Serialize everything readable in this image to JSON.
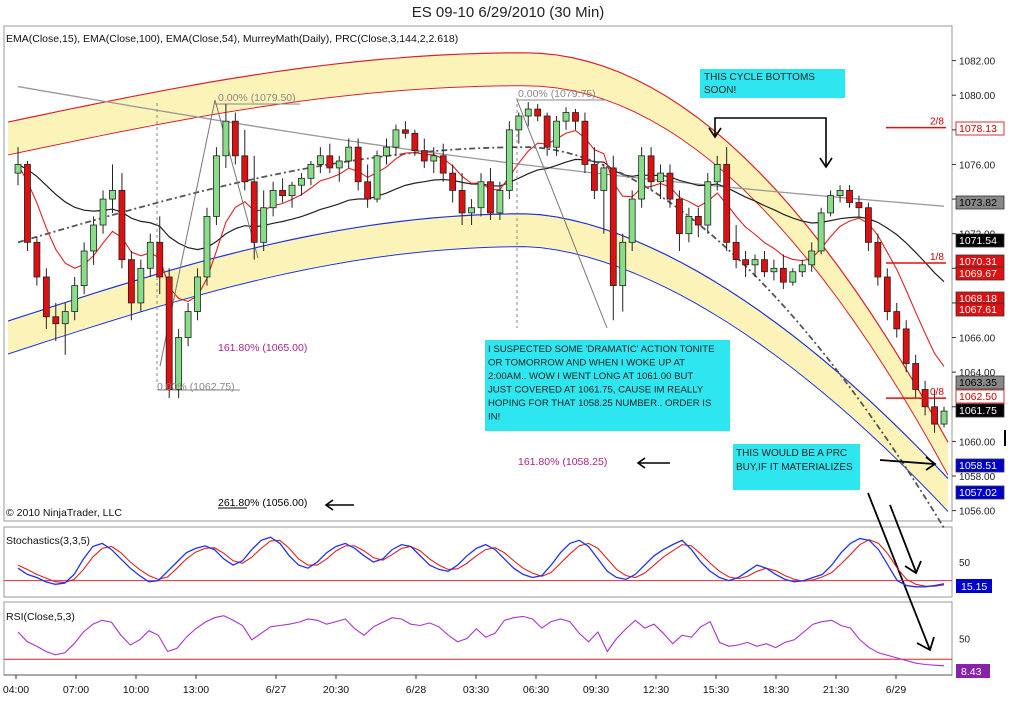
{
  "window_title": "ES 09-10  6/29/2010 (30 Min)",
  "chart_data": {
    "type": "candlestick",
    "title": "ES 09-10  6/29/2010 (30 Min)",
    "indicators_label": "EMA(Close,15), EMA(Close,100), EMA(Close,54), MurreyMath(Daily), PRC(Close,3,144,2,2.618)",
    "copyright": "© 2010 NinjaTrader, LLC",
    "x_ticks": [
      "04:00",
      "07:00",
      "10:00",
      "13:00",
      "6/27",
      "20:30",
      "6/28",
      "03:30",
      "06:30",
      "09:30",
      "12:30",
      "15:30",
      "18:30",
      "21:30",
      "6/29"
    ],
    "price_ticks": [
      "1082.00",
      "1080.00",
      "1078.00",
      "1076.00",
      "1074.00",
      "1072.00",
      "1070.00",
      "1068.00",
      "1066.00",
      "1064.00",
      "1062.00",
      "1060.00",
      "1058.00",
      "1056.00"
    ],
    "ylim": [
      1055.4,
      1084.0
    ],
    "candles": [
      [
        1075.5,
        1077.0,
        1074.8,
        1076.0
      ],
      [
        1076.0,
        1076.2,
        1071.0,
        1071.5
      ],
      [
        1071.5,
        1071.8,
        1069.0,
        1069.5
      ],
      [
        1069.5,
        1070.0,
        1066.5,
        1067.2
      ],
      [
        1067.2,
        1068.0,
        1065.8,
        1066.8
      ],
      [
        1066.8,
        1068.0,
        1065.0,
        1067.5
      ],
      [
        1067.5,
        1069.5,
        1067.0,
        1069.0
      ],
      [
        1069.0,
        1071.5,
        1068.5,
        1071.0
      ],
      [
        1071.0,
        1073.0,
        1070.2,
        1072.5
      ],
      [
        1072.5,
        1074.5,
        1072.0,
        1074.0
      ],
      [
        1074.0,
        1076.0,
        1073.2,
        1074.5
      ],
      [
        1074.5,
        1075.5,
        1070.0,
        1070.5
      ],
      [
        1070.5,
        1071.0,
        1067.0,
        1068.0
      ],
      [
        1068.0,
        1070.5,
        1067.5,
        1070.0
      ],
      [
        1070.0,
        1072.0,
        1069.5,
        1071.5
      ],
      [
        1071.5,
        1073.0,
        1068.5,
        1069.5
      ],
      [
        1069.5,
        1070.0,
        1062.5,
        1063.0
      ],
      [
        1063.0,
        1066.5,
        1062.5,
        1066.0
      ],
      [
        1066.0,
        1068.0,
        1065.5,
        1067.5
      ],
      [
        1067.5,
        1070.0,
        1067.0,
        1069.5
      ],
      [
        1069.5,
        1073.5,
        1069.0,
        1073.0
      ],
      [
        1073.0,
        1077.0,
        1072.5,
        1076.5
      ],
      [
        1076.5,
        1079.5,
        1075.8,
        1078.5
      ],
      [
        1078.5,
        1079.0,
        1076.0,
        1076.5
      ],
      [
        1076.5,
        1078.0,
        1074.5,
        1075.0
      ],
      [
        1075.0,
        1076.5,
        1070.5,
        1071.5
      ],
      [
        1071.5,
        1074.5,
        1071.0,
        1073.5
      ],
      [
        1073.5,
        1075.0,
        1073.0,
        1074.5
      ],
      [
        1074.5,
        1075.2,
        1073.8,
        1074.2
      ],
      [
        1074.2,
        1075.0,
        1073.5,
        1074.8
      ],
      [
        1074.8,
        1075.5,
        1074.2,
        1075.2
      ],
      [
        1075.2,
        1076.2,
        1074.8,
        1076.0
      ],
      [
        1076.0,
        1077.0,
        1075.5,
        1076.5
      ],
      [
        1076.5,
        1077.2,
        1075.5,
        1075.8
      ],
      [
        1075.8,
        1076.5,
        1075.0,
        1076.2
      ],
      [
        1076.2,
        1077.5,
        1075.8,
        1077.0
      ],
      [
        1077.0,
        1077.5,
        1074.5,
        1075.0
      ],
      [
        1075.0,
        1076.0,
        1073.5,
        1074.0
      ],
      [
        1074.0,
        1076.8,
        1073.8,
        1076.5
      ],
      [
        1076.5,
        1077.5,
        1076.0,
        1077.0
      ],
      [
        1077.0,
        1078.3,
        1076.5,
        1078.0
      ],
      [
        1078.0,
        1078.5,
        1077.5,
        1077.8
      ],
      [
        1077.8,
        1078.0,
        1076.5,
        1076.8
      ],
      [
        1076.8,
        1077.5,
        1075.8,
        1076.2
      ],
      [
        1076.2,
        1077.0,
        1075.5,
        1076.5
      ],
      [
        1076.5,
        1077.2,
        1075.0,
        1075.5
      ],
      [
        1075.5,
        1076.0,
        1073.8,
        1074.5
      ],
      [
        1074.5,
        1075.5,
        1072.5,
        1073.2
      ],
      [
        1073.2,
        1074.0,
        1072.5,
        1073.5
      ],
      [
        1073.5,
        1075.5,
        1073.0,
        1075.0
      ],
      [
        1075.0,
        1075.8,
        1072.8,
        1073.2
      ],
      [
        1073.2,
        1075.0,
        1072.8,
        1074.5
      ],
      [
        1074.5,
        1078.5,
        1074.0,
        1078.0
      ],
      [
        1078.0,
        1079.0,
        1077.2,
        1078.8
      ],
      [
        1078.8,
        1079.6,
        1078.2,
        1079.2
      ],
      [
        1079.2,
        1079.5,
        1078.5,
        1078.8
      ],
      [
        1078.8,
        1079.0,
        1076.5,
        1077.0
      ],
      [
        1077.0,
        1078.8,
        1076.5,
        1078.5
      ],
      [
        1078.5,
        1079.3,
        1078.0,
        1079.0
      ],
      [
        1079.0,
        1079.2,
        1078.0,
        1078.5
      ],
      [
        1078.5,
        1079.0,
        1075.5,
        1076.0
      ],
      [
        1076.0,
        1077.0,
        1074.0,
        1074.5
      ],
      [
        1074.5,
        1076.0,
        1072.0,
        1075.8
      ],
      [
        1075.8,
        1076.5,
        1067.0,
        1069.0
      ],
      [
        1069.0,
        1072.0,
        1067.5,
        1071.5
      ],
      [
        1071.5,
        1074.5,
        1071.0,
        1074.0
      ],
      [
        1074.0,
        1077.0,
        1073.5,
        1076.5
      ],
      [
        1076.5,
        1077.0,
        1074.5,
        1075.0
      ],
      [
        1075.0,
        1076.0,
        1074.0,
        1075.5
      ],
      [
        1075.5,
        1076.0,
        1073.5,
        1074.0
      ],
      [
        1074.0,
        1074.5,
        1071.0,
        1072.0
      ],
      [
        1072.0,
        1073.5,
        1071.5,
        1073.0
      ],
      [
        1073.0,
        1073.5,
        1071.8,
        1072.5
      ],
      [
        1072.5,
        1075.5,
        1072.0,
        1075.0
      ],
      [
        1075.0,
        1076.5,
        1074.5,
        1076.0
      ],
      [
        1076.0,
        1077.0,
        1071.0,
        1071.5
      ],
      [
        1071.5,
        1072.5,
        1070.0,
        1070.5
      ],
      [
        1070.5,
        1071.0,
        1069.5,
        1070.2
      ],
      [
        1070.2,
        1070.8,
        1069.5,
        1070.5
      ],
      [
        1070.5,
        1071.0,
        1069.5,
        1069.8
      ],
      [
        1069.8,
        1070.5,
        1069.3,
        1070.0
      ],
      [
        1070.0,
        1070.8,
        1068.8,
        1069.2
      ],
      [
        1069.2,
        1070.0,
        1069.0,
        1069.8
      ],
      [
        1069.8,
        1070.5,
        1069.5,
        1070.2
      ],
      [
        1070.2,
        1071.5,
        1069.8,
        1071.0
      ],
      [
        1071.0,
        1073.5,
        1070.8,
        1073.2
      ],
      [
        1073.2,
        1074.5,
        1073.0,
        1074.2
      ],
      [
        1074.2,
        1074.8,
        1073.8,
        1074.5
      ],
      [
        1074.5,
        1074.8,
        1073.5,
        1073.8
      ],
      [
        1073.8,
        1074.2,
        1073.0,
        1073.5
      ],
      [
        1073.5,
        1073.8,
        1071.0,
        1071.5
      ],
      [
        1071.5,
        1072.0,
        1069.0,
        1069.5
      ],
      [
        1069.5,
        1070.0,
        1067.0,
        1067.5
      ],
      [
        1067.5,
        1068.0,
        1066.0,
        1066.5
      ],
      [
        1066.5,
        1067.0,
        1064.0,
        1064.5
      ],
      [
        1064.5,
        1065.0,
        1062.5,
        1063.0
      ],
      [
        1063.0,
        1063.5,
        1061.5,
        1062.0
      ],
      [
        1062.0,
        1063.0,
        1060.5,
        1061.0
      ],
      [
        1061.0,
        1062.0,
        1060.8,
        1061.75
      ]
    ],
    "right_axis_labels": [
      {
        "text": "1078.13",
        "bg": "#ffffff",
        "fg": "#cc0000"
      },
      {
        "text": "1073.82",
        "bg": "#888888",
        "fg": "#000000"
      },
      {
        "text": "1071.54",
        "bg": "#000000",
        "fg": "#ffffff"
      },
      {
        "text": "1070.31",
        "bg": "#dd1111",
        "fg": "#ffffff"
      },
      {
        "text": "1069.67",
        "bg": "#dd1111",
        "fg": "#ffffff"
      },
      {
        "text": "1068.18",
        "bg": "#dd1111",
        "fg": "#ffffff"
      },
      {
        "text": "1067.61",
        "bg": "#dd1111",
        "fg": "#ffffff"
      },
      {
        "text": "1063.35",
        "bg": "#888888",
        "fg": "#000000"
      },
      {
        "text": "1062.50",
        "bg": "#ffffff",
        "fg": "#cc0000"
      },
      {
        "text": "1061.75",
        "bg": "#000000",
        "fg": "#ffffff"
      },
      {
        "text": "1058.51",
        "bg": "#0000cc",
        "fg": "#ffffff"
      },
      {
        "text": "1057.02",
        "bg": "#0000cc",
        "fg": "#ffffff"
      }
    ],
    "murrey_lines": [
      {
        "label": "2/8",
        "price": 1078.13
      },
      {
        "label": "1/8",
        "price": 1070.31
      },
      {
        "label": "0/8",
        "price": 1062.5
      }
    ],
    "fib_labels": [
      {
        "text": "0.00% (1079.50)",
        "color": "#888888"
      },
      {
        "text": "0.00% (1079.75)",
        "color": "#888888"
      },
      {
        "text": "0.00% (1062.75)",
        "color": "#888888"
      },
      {
        "text": "161.80% (1065.00)",
        "color": "#aa2288"
      },
      {
        "text": "161.80% (1058.25)",
        "color": "#aa2288"
      },
      {
        "text": "261.80% (1056.00)",
        "color": "#000000"
      }
    ],
    "annotations": [
      {
        "text": "THIS CYCLE BOTTOMS SOON!"
      },
      {
        "text": "I SUSPECTED SOME 'DRAMATIC' ACTION TONITE OR TOMORROW AND WHEN I WOKE UP AT 2:00AM.. WOW  I WENT LONG AT 1061.00 BUT JUST COVERED AT 1061.75, CAUSE IM REALLY HOPING FOR THAT 1058.25 NUMBER.. ORDER IS IN!"
      },
      {
        "text": "THIS WOULD BE A PRC BUY,IF IT MATERIALIZES"
      }
    ],
    "stochastics": {
      "label": "Stochastics(3,3,5)",
      "tick": "50",
      "value_label": "15.15",
      "k": [
        40,
        30,
        25,
        18,
        14,
        16,
        30,
        55,
        75,
        80,
        70,
        55,
        40,
        28,
        18,
        20,
        35,
        50,
        65,
        72,
        76,
        70,
        55,
        45,
        52,
        70,
        85,
        90,
        80,
        60,
        45,
        40,
        50,
        65,
        75,
        80,
        72,
        60,
        50,
        55,
        70,
        78,
        75,
        60,
        45,
        38,
        35,
        45,
        60,
        72,
        78,
        70,
        55,
        40,
        30,
        25,
        28,
        45,
        65,
        80,
        85,
        75,
        55,
        35,
        25,
        22,
        30,
        45,
        60,
        70,
        78,
        85,
        70,
        50,
        35,
        25,
        20,
        25,
        35,
        45,
        40,
        30,
        22,
        18,
        20,
        25,
        30,
        45,
        65,
        80,
        88,
        85,
        70,
        45,
        20,
        12,
        10,
        10,
        12,
        15
      ],
      "d": [
        45,
        38,
        30,
        24,
        18,
        17,
        22,
        38,
        58,
        72,
        75,
        65,
        50,
        38,
        28,
        22,
        26,
        40,
        55,
        66,
        72,
        73,
        64,
        52,
        48,
        58,
        72,
        84,
        85,
        72,
        55,
        45,
        45,
        55,
        68,
        76,
        76,
        68,
        57,
        53,
        62,
        72,
        75,
        68,
        55,
        45,
        38,
        39,
        48,
        60,
        70,
        73,
        65,
        52,
        40,
        32,
        27,
        33,
        48,
        63,
        76,
        80,
        72,
        55,
        38,
        28,
        25,
        32,
        45,
        58,
        68,
        78,
        76,
        63,
        48,
        35,
        26,
        23,
        27,
        35,
        40,
        36,
        28,
        22,
        19,
        21,
        26,
        33,
        47,
        62,
        78,
        86,
        80,
        63,
        40,
        22,
        14,
        11,
        11,
        13
      ]
    },
    "rsi": {
      "label": "RSI(Close,5,3)",
      "tick": "50",
      "value_label": "8.43",
      "values": [
        60,
        45,
        38,
        30,
        25,
        28,
        42,
        60,
        72,
        78,
        75,
        55,
        40,
        48,
        62,
        55,
        30,
        35,
        52,
        65,
        75,
        82,
        85,
        78,
        70,
        48,
        58,
        68,
        70,
        72,
        75,
        80,
        78,
        72,
        76,
        80,
        65,
        55,
        68,
        75,
        82,
        80,
        72,
        70,
        74,
        68,
        55,
        45,
        50,
        65,
        52,
        58,
        78,
        82,
        84,
        80,
        66,
        76,
        80,
        76,
        58,
        45,
        60,
        30,
        50,
        65,
        78,
        66,
        72,
        58,
        42,
        55,
        52,
        68,
        76,
        44,
        38,
        40,
        44,
        38,
        42,
        36,
        44,
        48,
        60,
        72,
        76,
        78,
        70,
        66,
        48,
        36,
        28,
        24,
        20,
        16,
        12,
        10,
        9,
        8
      ],
      "signal": [
        58,
        50,
        42,
        35,
        30,
        28,
        34,
        48,
        62,
        72,
        76,
        66,
        52,
        46,
        54,
        56,
        42,
        34,
        42,
        55,
        66,
        76,
        82,
        80,
        74,
        60,
        56,
        62,
        67,
        70,
        73,
        77,
        78,
        75,
        75,
        78,
        72,
        62,
        64,
        71,
        78,
        80,
        76,
        72,
        72,
        70,
        62,
        52,
        50,
        58,
        56,
        56,
        68,
        78,
        82,
        81,
        74,
        74,
        77,
        76,
        66,
        54,
        56,
        44,
        44,
        56,
        70,
        70,
        70,
        64,
        52,
        52,
        53,
        62,
        70,
        58,
        45,
        41,
        42,
        41,
        41,
        39,
        41,
        45,
        53,
        64,
        72,
        76,
        74,
        69,
        58,
        45,
        35,
        29,
        24,
        19,
        15,
        12,
        10,
        9
      ]
    }
  }
}
